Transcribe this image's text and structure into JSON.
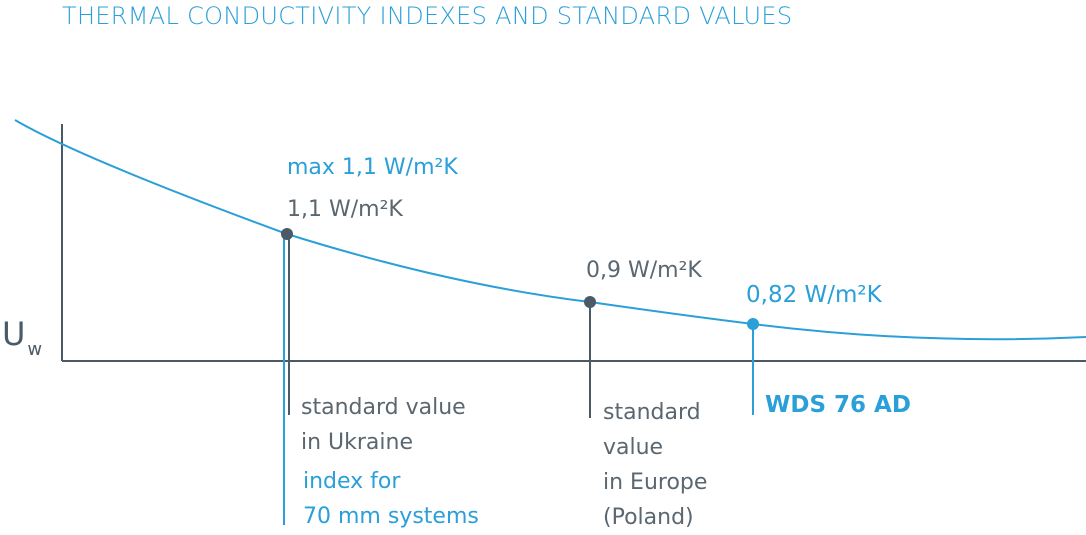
{
  "title": "THERMAL CONDUCTIVITY INDEXES AND STANDARD VALUES",
  "axis": {
    "y_label_main": "U",
    "y_label_sub": "w"
  },
  "colors": {
    "accent": "#2a9fd8",
    "dark": "#4a5a66",
    "text_gray": "#5b6770"
  },
  "points": [
    {
      "max_label": "max 1,1 W/m²K",
      "value_label": "1,1 W/m²K",
      "caption": "standard value\nin Ukraine",
      "sub_caption": "index for\n70 mm systems"
    },
    {
      "value_label": "0,9 W/m²K",
      "caption": "standard\nvalue\nin Europe\n(Poland)"
    },
    {
      "value_label": "0,82 W/m²K",
      "caption": "WDS 76 AD"
    }
  ],
  "chart_data": {
    "type": "line",
    "title": "THERMAL CONDUCTIVITY INDEXES AND STANDARD VALUES",
    "ylabel": "Uw",
    "xlabel": "",
    "unit": "W/m²K",
    "series": [
      {
        "name": "Uw curve",
        "marked_points": [
          {
            "label": "standard value in Ukraine",
            "value": 1.1
          },
          {
            "label": "standard value in Europe (Poland)",
            "value": 0.9
          },
          {
            "label": "WDS 76 AD",
            "value": 0.82
          }
        ]
      }
    ]
  }
}
